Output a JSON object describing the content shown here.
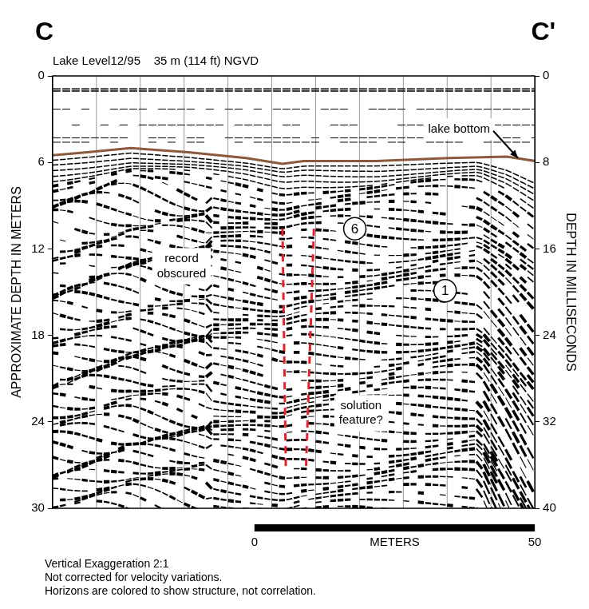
{
  "chart_data": {
    "type": "line",
    "section_start": "C",
    "section_end": "C'",
    "title": "Lake Level12/95    35 m (114 ft) NGVD",
    "ylabel": "APPROXIMATE DEPTH IN METERS",
    "y2label": "DEPTH IN MILLISECONDS",
    "xlim": [
      0,
      86
    ],
    "ylim": [
      30,
      0
    ],
    "yticks": [
      0,
      6,
      12,
      18,
      24,
      30
    ],
    "y2lim": [
      40,
      0
    ],
    "y2ticks": [
      0,
      8,
      16,
      24,
      32,
      40
    ],
    "tick_labels": "y",
    "grid": false,
    "series": [
      {
        "color": "#8b5a3c",
        "x": [
          0,
          6.2,
          13.9,
          24.2,
          34.5,
          41,
          44.8,
          57.7,
          70.6,
          81,
          86
        ],
        "values": [
          5.5,
          5.3,
          5.0,
          5.3,
          5.7,
          6.1,
          5.9,
          5.9,
          5.7,
          5.6,
          5.9
        ]
      },
      {
        "color": "#e8202a",
        "line_style": "dashed",
        "x": [
          41.0,
          41.6
        ],
        "values": [
          10.6,
          27.4
        ]
      },
      {
        "color": "#e8202a",
        "line_style": "dashed",
        "x": [
          46.6,
          45.2
        ],
        "values": [
          10.6,
          27.2
        ]
      }
    ],
    "annotations": [
      {
        "text": "lake bottom",
        "x": 72.5,
        "y": 3.7,
        "arrow_to": [
          83,
          5.7
        ]
      },
      {
        "text": "record obscured",
        "x": 23,
        "y": 13.2
      },
      {
        "text": "solution feature?",
        "x": 55,
        "y": 23.4
      }
    ],
    "horizon_labels": [
      {
        "text": "6",
        "x": 53.9,
        "y": 10.6
      },
      {
        "text": "1",
        "x": 70,
        "y": 14.9
      }
    ],
    "scale_bar": {
      "x": 36,
      "length": 50,
      "ticks": [
        0,
        50
      ],
      "label": "METERS"
    },
    "notes": [
      "Vertical Exaggeration 2:1",
      "Not corrected for velocity variations.",
      "Horizons are colored to show structure, not correlation."
    ]
  }
}
